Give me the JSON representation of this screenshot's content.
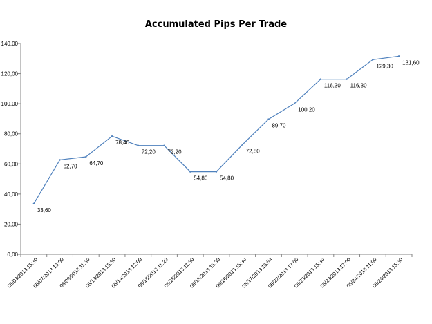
{
  "chart_data": {
    "type": "line",
    "title": "Accumulated  Pips Per Trade",
    "xlabel": "",
    "ylabel": "",
    "ylim": [
      0,
      140
    ],
    "y_ticks": [
      "0,00",
      "20,00",
      "40,00",
      "60,00",
      "80,00",
      "100,00",
      "120,00",
      "140,00"
    ],
    "grid": false,
    "legend": "none",
    "line_color": "#4f81bd",
    "categories": [
      "05/03/2013 15:30",
      "05/07/2013 13:00",
      "05/09/2013 11:30",
      "05/13/2013 15:30",
      "05/14/2013 12:00",
      "05/15/2013 11:29",
      "05/15/2013 11:30",
      "05/15/2013 15:30",
      "05/16/2013 15:30",
      "05/17/2013 16:54",
      "05/22/2013 17:00",
      "05/23/2013 15:30",
      "05/23/2013 17:00",
      "05/24/2013 11:00",
      "05/24/2013 15:30"
    ],
    "series": [
      {
        "values": [
          33.6,
          62.7,
          64.7,
          78.4,
          72.2,
          72.2,
          54.8,
          54.8,
          72.8,
          89.7,
          100.2,
          116.3,
          116.3,
          129.3,
          131.6
        ],
        "labels": [
          "33,60",
          "62,70",
          "64,70",
          "78,40",
          "72,20",
          "72,20",
          "54,80",
          "54,80",
          "72,80",
          "89,70",
          "100,20",
          "116,30",
          "116,30",
          "129,30",
          "131,60"
        ]
      }
    ]
  }
}
